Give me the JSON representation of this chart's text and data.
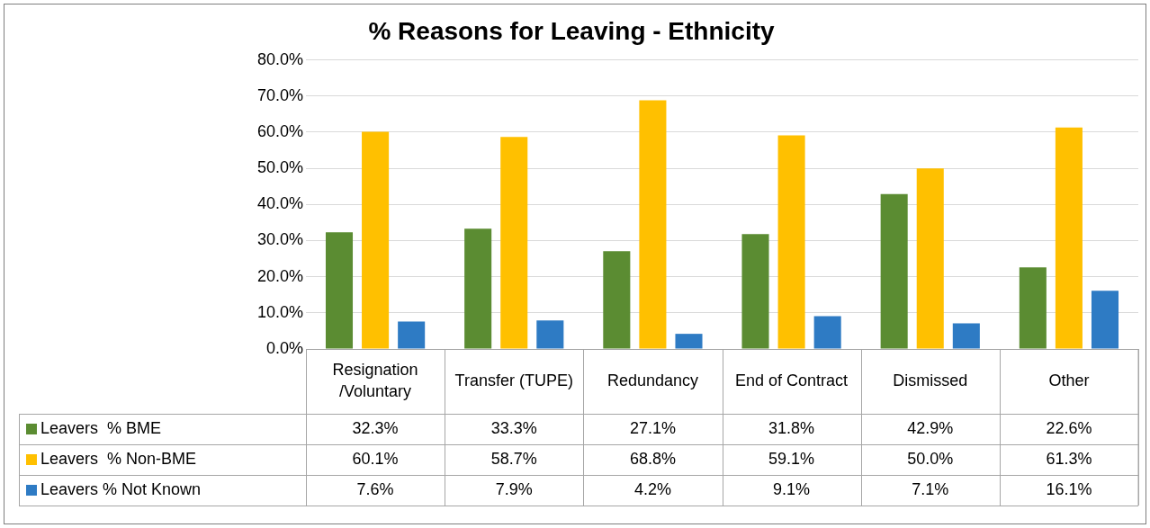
{
  "chart_data": {
    "type": "bar",
    "title": "% Reasons for Leaving - Ethnicity",
    "categories": [
      "Resignation/Voluntary",
      "Transfer (TUPE)",
      "Redundancy",
      "End of Contract",
      "Dismissed",
      "Other"
    ],
    "series": [
      {
        "name": "Leavers  % BME",
        "color": "#5b8c32",
        "values": [
          32.3,
          33.3,
          27.1,
          31.8,
          42.9,
          22.6
        ],
        "value_labels": [
          "32.3%",
          "33.3%",
          "27.1%",
          "31.8%",
          "42.9%",
          "22.6%"
        ]
      },
      {
        "name": "Leavers  % Non-BME",
        "color": "#ffc000",
        "values": [
          60.1,
          58.7,
          68.8,
          59.1,
          50.0,
          61.3
        ],
        "value_labels": [
          "60.1%",
          "58.7%",
          "68.8%",
          "59.1%",
          "50.0%",
          "61.3%"
        ]
      },
      {
        "name": "Leavers % Not Known",
        "color": "#2e7bc4",
        "values": [
          7.6,
          7.9,
          4.2,
          9.1,
          7.1,
          16.1
        ],
        "value_labels": [
          "7.6%",
          "7.9%",
          "4.2%",
          "9.1%",
          "7.1%",
          "16.1%"
        ]
      }
    ],
    "ylim": [
      0,
      80
    ],
    "yticks": [
      {
        "value": 0,
        "label": "0.0%"
      },
      {
        "value": 10,
        "label": "10.0%"
      },
      {
        "value": 20,
        "label": "20.0%"
      },
      {
        "value": 30,
        "label": "30.0%"
      },
      {
        "value": 40,
        "label": "40.0%"
      },
      {
        "value": 50,
        "label": "50.0%"
      },
      {
        "value": 60,
        "label": "60.0%"
      },
      {
        "value": 70,
        "label": "70.0%"
      },
      {
        "value": 80,
        "label": "80.0%"
      }
    ],
    "grid": "y",
    "legend": "bottom"
  }
}
